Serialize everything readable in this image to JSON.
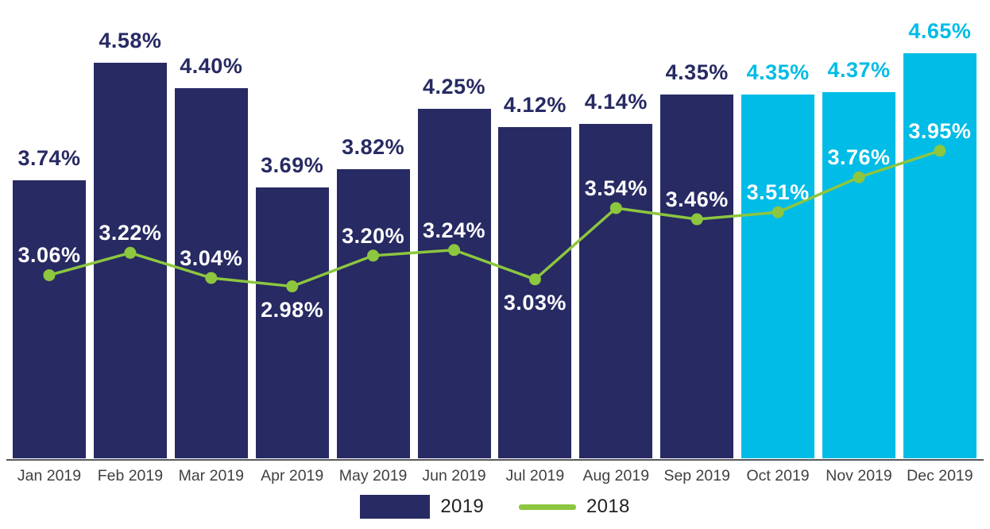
{
  "chart_data": {
    "type": "bar",
    "title": "",
    "xlabel": "",
    "ylabel": "",
    "grid": false,
    "y_axis_visible": false,
    "legend_position": "bottom-center",
    "categories": [
      "Jan 2019",
      "Feb 2019",
      "Mar 2019",
      "Apr 2019",
      "May 2019",
      "Jun 2019",
      "Jul 2019",
      "Aug 2019",
      "Sep 2019",
      "Oct 2019",
      "Nov 2019",
      "Dec 2019"
    ],
    "series": [
      {
        "name": "2019",
        "type": "bar",
        "values": [
          3.74,
          4.58,
          4.4,
          3.69,
          3.82,
          4.25,
          4.12,
          4.14,
          4.35,
          4.35,
          4.37,
          4.65
        ],
        "data_labels": [
          "3.74%",
          "4.58%",
          "4.40%",
          "3.69%",
          "3.82%",
          "4.25%",
          "4.12%",
          "4.14%",
          "4.35%",
          "4.35%",
          "4.37%",
          "4.65%"
        ],
        "color": "#272A63",
        "highlight_color": "#00BCE6",
        "highlight_from_index": 9
      },
      {
        "name": "2018",
        "type": "line",
        "values": [
          3.06,
          3.22,
          3.04,
          2.98,
          3.2,
          3.24,
          3.03,
          3.54,
          3.46,
          3.51,
          3.76,
          3.95
        ],
        "data_labels": [
          "3.06%",
          "3.22%",
          "3.04%",
          "2.98%",
          "3.20%",
          "3.24%",
          "3.03%",
          "3.54%",
          "3.46%",
          "3.51%",
          "3.76%",
          "3.95%"
        ],
        "color": "#8DC63F",
        "label_color": "#FFFFFF"
      }
    ],
    "legend": [
      {
        "label": "2019",
        "swatch": "bar",
        "color": "#272A63"
      },
      {
        "label": "2018",
        "swatch": "line",
        "color": "#8DC63F"
      }
    ],
    "colors": {
      "axis_line": "#58595B",
      "month_label": "#414042",
      "legend_text": "#231F20",
      "background": "#FFFFFF"
    }
  }
}
